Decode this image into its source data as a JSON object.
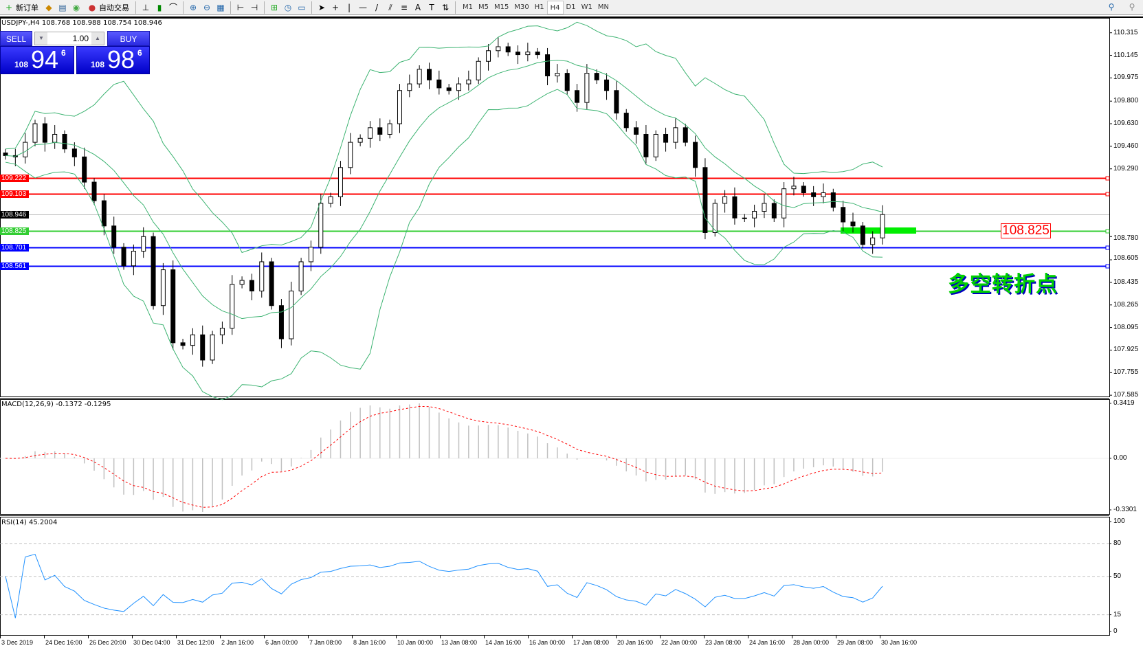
{
  "toolbar": {
    "new_order": "新订单",
    "auto_trading": "自动交易",
    "icons": [
      "new-order-icon",
      "market-watch-icon",
      "navigator-icon",
      "signals-icon",
      "auto-trading-icon",
      "bar-chart-icon",
      "candlestick-icon",
      "line-chart-icon",
      "zoom-in-icon",
      "zoom-out-icon",
      "tile-windows-icon",
      "chart-shift-icon",
      "autoscroll-icon",
      "indicators-icon",
      "periods-icon",
      "templates-icon",
      "cursor-icon",
      "crosshair-icon",
      "vertical-line-icon",
      "horizontal-line-icon",
      "trendline-icon",
      "equidistant-channel-icon",
      "fibonacci-icon",
      "text-icon",
      "text-label-icon",
      "arrows-icon",
      "search-icon",
      "community-icon"
    ],
    "timeframes": [
      "M1",
      "M5",
      "M15",
      "M30",
      "H1",
      "H4",
      "D1",
      "W1",
      "MN"
    ],
    "active_timeframe": "H4"
  },
  "chart": {
    "symbol_info": "USDJPY-,H4  108.768 108.988 108.754 108.946",
    "trade_panel": {
      "sell_label": "SELL",
      "buy_label": "BUY",
      "lot": "1.00",
      "sell_price": {
        "prefix": "108",
        "big": "94",
        "sup": "6"
      },
      "buy_price": {
        "prefix": "108",
        "big": "98",
        "sup": "6"
      }
    },
    "price_ticks": [
      "110.315",
      "110.145",
      "109.975",
      "109.800",
      "109.630",
      "109.460",
      "109.290",
      "108.780",
      "108.605",
      "108.435",
      "108.265",
      "108.095",
      "107.925",
      "107.755",
      "107.585"
    ],
    "levels": [
      {
        "price": 109.222,
        "label": "109.222",
        "color": "#ff0000"
      },
      {
        "price": 109.103,
        "label": "109.103",
        "color": "#ff0000"
      },
      {
        "price": 108.946,
        "label": "108.946",
        "color": "#c0c0c0",
        "label_bg": "#000000"
      },
      {
        "price": 108.825,
        "label": "108.825",
        "color": "#32cd32"
      },
      {
        "price": 108.701,
        "label": "108.701",
        "color": "#0000ff"
      },
      {
        "price": 108.561,
        "label": "108.561",
        "color": "#0000ff"
      }
    ],
    "callout": "108.825",
    "annotation": "多空转折点",
    "annotation_color": "#00d000",
    "closes": [
      109.39,
      109.38,
      109.49,
      109.63,
      109.49,
      109.55,
      109.44,
      109.38,
      109.19,
      109.05,
      108.86,
      108.7,
      108.56,
      108.67,
      108.78,
      108.26,
      108.53,
      107.98,
      107.96,
      108.04,
      107.85,
      108.04,
      108.09,
      108.42,
      108.45,
      108.37,
      108.59,
      108.26,
      108.01,
      108.37,
      108.59,
      108.7,
      109.03,
      109.08,
      109.3,
      109.49,
      109.52,
      109.6,
      109.55,
      109.63,
      109.88,
      109.93,
      110.04,
      109.96,
      109.9,
      109.88,
      109.93,
      109.96,
      110.1,
      110.18,
      110.21,
      110.17,
      110.15,
      110.17,
      110.15,
      109.99,
      110.01,
      109.88,
      109.79,
      110.01,
      109.96,
      109.88,
      109.71,
      109.6,
      109.55,
      109.38,
      109.55,
      109.49,
      109.6,
      109.49,
      109.3,
      108.81,
      109.03,
      109.08,
      108.92,
      108.92,
      108.97,
      109.03,
      108.92,
      109.14,
      109.16,
      109.11,
      109.08,
      109.11,
      109.0,
      108.89,
      108.86,
      108.72,
      108.77,
      108.946
    ],
    "band_color": "#3cb371",
    "time_labels": [
      "3 Dec 2019",
      "24 Dec 16:00",
      "26 Dec 20:00",
      "30 Dec 04:00",
      "31 Dec 12:00",
      "2 Jan 16:00",
      "6 Jan 00:00",
      "7 Jan 08:00",
      "8 Jan 16:00",
      "10 Jan 00:00",
      "13 Jan 08:00",
      "14 Jan 16:00",
      "16 Jan 00:00",
      "17 Jan 08:00",
      "20 Jan 16:00",
      "22 Jan 00:00",
      "23 Jan 08:00",
      "24 Jan 16:00",
      "28 Jan 00:00",
      "29 Jan 08:00",
      "30 Jan 16:00"
    ]
  },
  "macd": {
    "title": "MACD(12,26,9) -0.1372 -0.1295",
    "ticks": [
      "0.3419",
      "0.00",
      "-0.3301"
    ],
    "histogram_color": "#c0c0c0",
    "signal_color": "#ff0000"
  },
  "rsi": {
    "title": "RSI(14) 45.2004",
    "ticks": [
      "100",
      "80",
      "50",
      "15",
      "0"
    ],
    "line_color": "#1e90ff"
  }
}
